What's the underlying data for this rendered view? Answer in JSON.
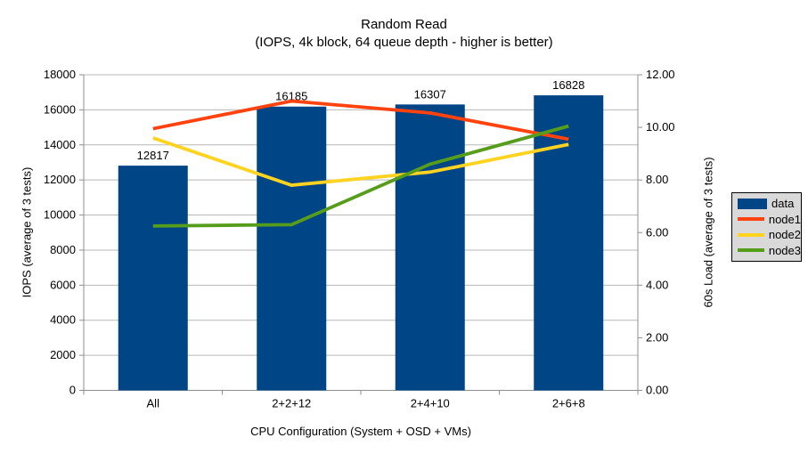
{
  "chart_data": {
    "type": "bar-line-combo",
    "title": "Random Read",
    "subtitle": "(IOPS, 4k block, 64 queue depth - higher is better)",
    "x_axis": {
      "title": "CPU Configuration (System + OSD + VMs)"
    },
    "y_axis": {
      "title": "IOPS (average of 3 tests)",
      "min": 0,
      "max": 18000,
      "step": 2000,
      "tick_labels": [
        "0",
        "2000",
        "4000",
        "6000",
        "8000",
        "10000",
        "12000",
        "14000",
        "16000",
        "18000"
      ]
    },
    "y2_axis": {
      "title": "60s Load (average of 3 tests)",
      "min": 0,
      "max": 12,
      "step": 2,
      "tick_labels": [
        "0.00",
        "2.00",
        "4.00",
        "6.00",
        "8.00",
        "10.00",
        "12.00"
      ]
    },
    "categories": [
      "All",
      "2+2+12",
      "2+4+10",
      "2+6+8"
    ],
    "bar_series": {
      "name": "data",
      "color": "#004586",
      "axis": "left",
      "values": [
        12817,
        16185,
        16307,
        16828
      ],
      "value_labels": [
        "12817",
        "16185",
        "16307",
        "16828"
      ]
    },
    "line_series": [
      {
        "name": "node1",
        "color": "#FF420E",
        "axis": "right",
        "values": [
          9.95,
          11.0,
          10.55,
          9.55
        ]
      },
      {
        "name": "node2",
        "color": "#FFD320",
        "axis": "right",
        "values": [
          9.6,
          7.8,
          8.3,
          9.35
        ]
      },
      {
        "name": "node3",
        "color": "#579D1C",
        "axis": "right",
        "values": [
          6.25,
          6.3,
          8.6,
          10.05
        ]
      }
    ],
    "legend": {
      "position": "right",
      "background": "#d9d9d9",
      "border": "#000000"
    },
    "grid": {
      "horizontal": true,
      "gridline_color": "#b7b7b7",
      "axis_color": "#8f8f8f"
    }
  }
}
